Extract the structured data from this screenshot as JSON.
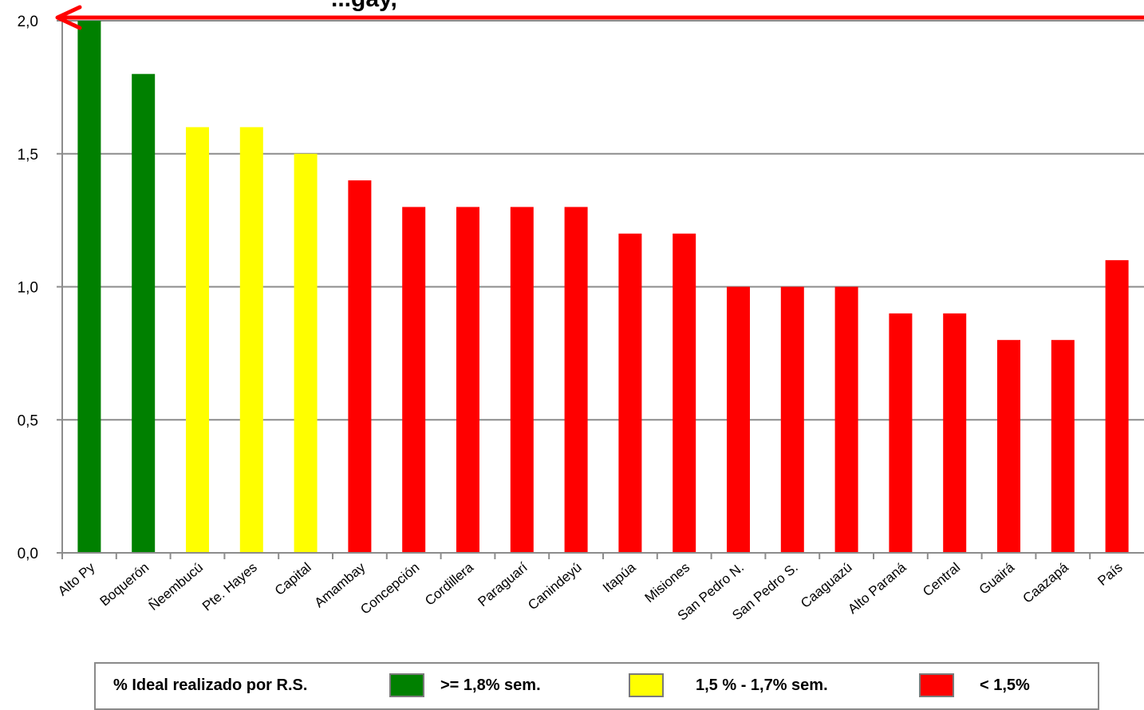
{
  "chart_data": {
    "type": "bar",
    "title": "...gay,",
    "categories": [
      "Alto Py",
      "Boquerón",
      "Ñeembucú",
      "Pte. Hayes",
      "Capital",
      "Amambay",
      "Concepción",
      "Cordillera",
      "Paraguarí",
      "Canindeyú",
      "Itapúa",
      "Misiones",
      "San Pedro N.",
      "San Pedro S.",
      "Caaguazú",
      "Alto Paraná",
      "Central",
      "Guairá",
      "Caazapá",
      "País"
    ],
    "values": [
      2.0,
      1.8,
      1.6,
      1.6,
      1.5,
      1.4,
      1.3,
      1.3,
      1.3,
      1.3,
      1.2,
      1.2,
      1.0,
      1.0,
      1.0,
      0.9,
      0.9,
      0.8,
      0.8,
      1.1
    ],
    "bar_colors": [
      "#008000",
      "#008000",
      "#ffff00",
      "#ffff00",
      "#ffff00",
      "#ff0000",
      "#ff0000",
      "#ff0000",
      "#ff0000",
      "#ff0000",
      "#ff0000",
      "#ff0000",
      "#ff0000",
      "#ff0000",
      "#ff0000",
      "#ff0000",
      "#ff0000",
      "#ff0000",
      "#ff0000",
      "#ff0000"
    ],
    "yticks": [
      "0,0",
      "0,5",
      "1,0",
      "1,5",
      "2,0"
    ],
    "ylim": [
      0,
      2.0
    ],
    "grid": true,
    "reference_line": {
      "value": 2.0,
      "color": "#ff0000"
    }
  },
  "legend": {
    "title": "% Ideal realizado por R.S.",
    "items": [
      {
        "label": ">= 1,8% sem.",
        "color": "#008000"
      },
      {
        "label": "1,5 % - 1,7% sem.",
        "color": "#ffff00"
      },
      {
        "label": "< 1,5%",
        "color": "#ff0000"
      }
    ]
  }
}
